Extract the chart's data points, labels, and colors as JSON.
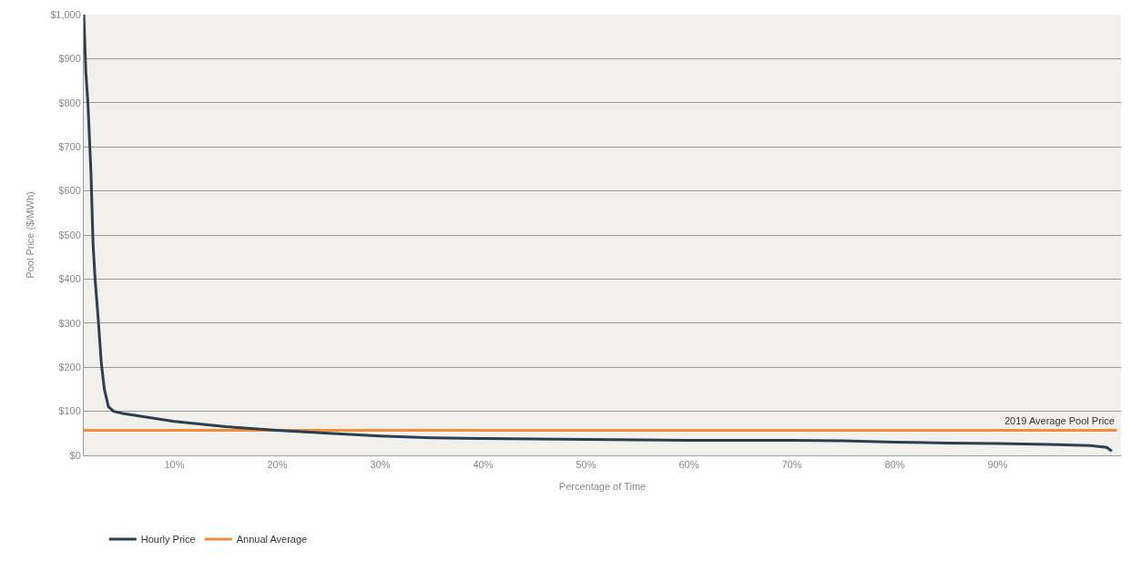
{
  "chart_data": {
    "type": "line",
    "xlabel": "Percentage of Time",
    "ylabel": "Pool Price ($/MWh)",
    "x": [
      1.2,
      1.4,
      1.6,
      1.9,
      2.1,
      2.3,
      2.6,
      2.9,
      3.2,
      3.6,
      4.1,
      5,
      7,
      10,
      15,
      20,
      25,
      30,
      35,
      40,
      45,
      50,
      55,
      60,
      65,
      70,
      75,
      80,
      85,
      90,
      95,
      99,
      100.6,
      101.1
    ],
    "series": [
      {
        "name": "Hourly Price",
        "color": "#2d3e50",
        "values": [
          1000,
          870,
          800,
          640,
          480,
          400,
          310,
          210,
          150,
          110,
          100,
          95,
          88,
          77,
          65,
          57,
          50,
          44,
          40,
          38,
          37,
          36,
          35,
          34,
          34,
          34,
          33,
          30,
          28,
          27,
          25,
          22,
          18,
          10
        ]
      },
      {
        "name": "Annual Average",
        "color": "#f28c38",
        "type": "line",
        "x": [
          1.2,
          101.6
        ],
        "values": [
          57,
          57
        ]
      }
    ],
    "annotations": [
      {
        "text": "2019 Average Pool Price",
        "x": 96,
        "y": 57
      }
    ],
    "xlim": [
      1.2,
      102
    ],
    "xticks": [
      {
        "value": 10,
        "label": "10%"
      },
      {
        "value": 20,
        "label": "20%"
      },
      {
        "value": 30,
        "label": "30%"
      },
      {
        "value": 40,
        "label": "40%"
      },
      {
        "value": 50,
        "label": "50%"
      },
      {
        "value": 60,
        "label": "60%"
      },
      {
        "value": 70,
        "label": "70%"
      },
      {
        "value": 80,
        "label": "80%"
      },
      {
        "value": 90,
        "label": "90%"
      }
    ],
    "ylim": [
      0,
      1000
    ],
    "yticks": [
      {
        "value": 0,
        "label": "$0"
      },
      {
        "value": 100,
        "label": "$100"
      },
      {
        "value": 200,
        "label": "$200"
      },
      {
        "value": 300,
        "label": "$300"
      },
      {
        "value": 400,
        "label": "$400"
      },
      {
        "value": 500,
        "label": "$500"
      },
      {
        "value": 600,
        "label": "$600"
      },
      {
        "value": 700,
        "label": "$700"
      },
      {
        "value": 800,
        "label": "$800"
      },
      {
        "value": 900,
        "label": "$900"
      },
      {
        "value": 1000,
        "label": "$1,000"
      }
    ],
    "grid": "y",
    "legend": "bottom",
    "marker": "none",
    "line_style": "solid"
  }
}
